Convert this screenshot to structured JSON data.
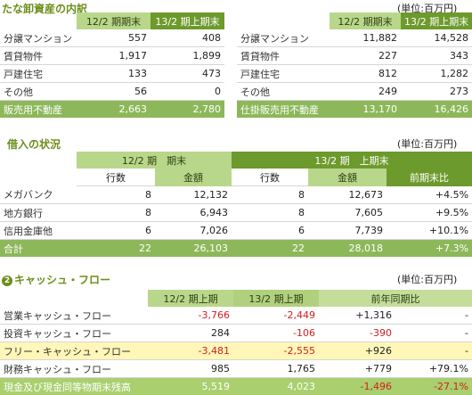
{
  "inventory": {
    "title": "たな卸資産の内訳",
    "unit": "(単位:百万円)",
    "left": {
      "headers": [
        "12/2 期期末",
        "13/2 期上期末"
      ],
      "rows": [
        {
          "label": "分譲マンション",
          "a": "557",
          "b": "408"
        },
        {
          "label": "賃貸物件",
          "a": "1,917",
          "b": "1,899"
        },
        {
          "label": "戸建住宅",
          "a": "133",
          "b": "473"
        },
        {
          "label": "その他",
          "a": "56",
          "b": "0"
        }
      ],
      "total": {
        "label": "販売用不動産",
        "a": "2,663",
        "b": "2,780"
      }
    },
    "right": {
      "headers": [
        "12/2 期期末",
        "13/2 期上期末"
      ],
      "rows": [
        {
          "label": "分譲マンション",
          "a": "11,882",
          "b": "14,528"
        },
        {
          "label": "賃貸物件",
          "a": "227",
          "b": "343"
        },
        {
          "label": "戸建住宅",
          "a": "812",
          "b": "1,282"
        },
        {
          "label": "その他",
          "a": "249",
          "b": "273"
        }
      ],
      "total": {
        "label": "仕掛販売用不動産",
        "a": "13,170",
        "b": "16,426"
      }
    }
  },
  "borrowing": {
    "title": "借入の状況",
    "unit": "(単位:百万円)",
    "period1": "12/2 期　期末",
    "period2": "13/2 期　上期末",
    "sub": [
      "行数",
      "金額",
      "行数",
      "金額",
      "前期末比"
    ],
    "rows": [
      {
        "label": "メガバンク",
        "c1": "8",
        "a1": "12,132",
        "c2": "8",
        "a2": "12,673",
        "d": "+4.5%"
      },
      {
        "label": "地方銀行",
        "c1": "8",
        "a1": "6,943",
        "c2": "8",
        "a2": "7,605",
        "d": "+9.5%"
      },
      {
        "label": "信用金庫他",
        "c1": "6",
        "a1": "7,026",
        "c2": "6",
        "a2": "7,739",
        "d": "+10.1%"
      }
    ],
    "total": {
      "label": "合計",
      "c1": "22",
      "a1": "26,103",
      "c2": "22",
      "a2": "28,018",
      "d": "+7.3%"
    }
  },
  "cashflow": {
    "num": "2",
    "title": "キャッシュ・フロー",
    "unit": "(単位:百万円)",
    "headers": [
      "12/2 期上期",
      "13/2 期上期",
      "前年同期比"
    ],
    "rows": [
      {
        "label": "営業キャッシュ・フロー",
        "a": "-3,766",
        "b": "-2,449",
        "c": "+1,316",
        "d": "-"
      },
      {
        "label": "投資キャッシュ・フロー",
        "a": "284",
        "b": "-106",
        "c": "-390",
        "d": "-"
      },
      {
        "label": "フリー・キャッシュ・フロー",
        "a": "-3,481",
        "b": "-2,555",
        "c": "+926",
        "d": "-"
      },
      {
        "label": "財務キャッシュ・フロー",
        "a": "985",
        "b": "1,765",
        "c": "+779",
        "d": "+79.1%"
      }
    ],
    "total": {
      "label": "現金及び現金同等物期末残高",
      "a": "5,519",
      "b": "4,023",
      "c": "-1,496",
      "d": "-27.1%"
    }
  }
}
